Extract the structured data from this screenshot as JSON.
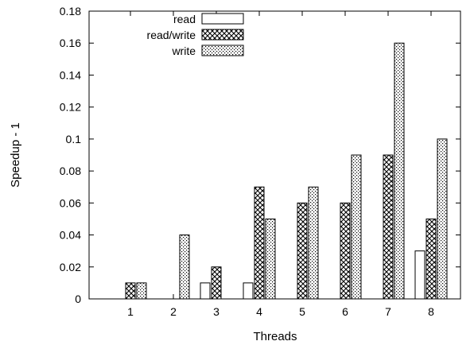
{
  "chart_data": {
    "type": "bar",
    "xlabel": "Threads",
    "ylabel": "Speedup - 1",
    "ylim": [
      0,
      0.18
    ],
    "yticks": [
      "0",
      "0.02",
      "0.04",
      "0.06",
      "0.08",
      "0.1",
      "0.12",
      "0.14",
      "0.16",
      "0.18"
    ],
    "categories": [
      "1",
      "2",
      "3",
      "4",
      "5",
      "6",
      "7",
      "8"
    ],
    "legend_position": "top-left",
    "grid": false,
    "series": [
      {
        "name": "read",
        "pattern": "none",
        "values": [
          0,
          0,
          0.01,
          0.01,
          0,
          0,
          0,
          0.03
        ]
      },
      {
        "name": "read/write",
        "pattern": "crosshatch",
        "values": [
          0.01,
          0,
          0.02,
          0.07,
          0.06,
          0.06,
          0.09,
          0.05
        ]
      },
      {
        "name": "write",
        "pattern": "dots",
        "values": [
          0.01,
          0.04,
          0,
          0.05,
          0.07,
          0.09,
          0.16,
          0.1
        ]
      }
    ]
  }
}
